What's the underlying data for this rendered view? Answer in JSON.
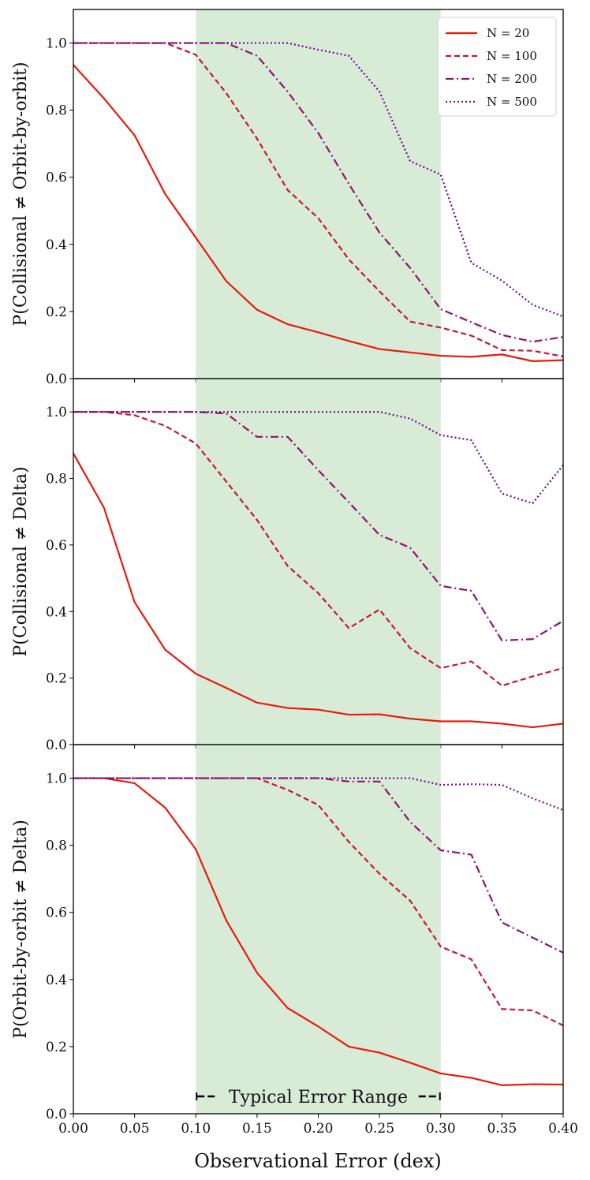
{
  "chart_data": {
    "type": "line",
    "figure_xlabel": "Observational Error (dex)",
    "xlim": [
      0,
      0.4
    ],
    "ylim": [
      0,
      1.1
    ],
    "x_ticks": [
      "0.00",
      "0.05",
      "0.10",
      "0.15",
      "0.20",
      "0.25",
      "0.30",
      "0.35",
      "0.40"
    ],
    "y_ticks": [
      "0.0",
      "0.2",
      "0.4",
      "0.6",
      "0.8",
      "1.0"
    ],
    "shaded_region": {
      "x_start": 0.1,
      "x_end": 0.3,
      "color": "#d8ebd7",
      "label": "Typical Error Range"
    },
    "legend": {
      "location": "upper right of top panel",
      "entries": [
        {
          "key": "n20",
          "label": "N = 20",
          "color": "#e8190f",
          "dash": "solid"
        },
        {
          "key": "n100",
          "label": "N = 100",
          "color": "#c4163a",
          "dash": "dashed"
        },
        {
          "key": "n200",
          "label": "N = 200",
          "color": "#8e1369",
          "dash": "dashdot"
        },
        {
          "key": "n500",
          "label": "N = 500",
          "color": "#6a0d91",
          "dash": "dotted"
        }
      ]
    },
    "x": [
      0,
      0.025,
      0.05,
      0.075,
      0.1,
      0.125,
      0.15,
      0.175,
      0.2,
      0.225,
      0.25,
      0.275,
      0.3,
      0.325,
      0.35,
      0.375,
      0.4
    ],
    "panels": [
      {
        "ylabel": "P(Collisional ≠ Orbit-by-orbit)",
        "series": [
          {
            "name": "N = 20",
            "values": [
              0.935,
              0.835,
              0.725,
              0.55,
              0.42,
              0.29,
              0.205,
              0.162,
              0.138,
              0.112,
              0.088,
              0.078,
              0.068,
              0.065,
              0.072,
              0.052,
              0.055
            ]
          },
          {
            "name": "N = 100",
            "values": [
              1.0,
              1.0,
              1.0,
              1.0,
              0.965,
              0.85,
              0.715,
              0.562,
              0.478,
              0.355,
              0.26,
              0.17,
              0.152,
              0.128,
              0.085,
              0.083,
              0.066
            ]
          },
          {
            "name": "N = 200",
            "values": [
              1.0,
              1.0,
              1.0,
              1.0,
              1.0,
              1.0,
              0.962,
              0.855,
              0.732,
              0.58,
              0.435,
              0.33,
              0.207,
              0.168,
              0.13,
              0.11,
              0.124
            ]
          },
          {
            "name": "N = 500",
            "values": [
              1.0,
              1.0,
              1.0,
              1.0,
              1.0,
              1.0,
              1.0,
              1.0,
              0.98,
              0.962,
              0.855,
              0.648,
              0.608,
              0.345,
              0.292,
              0.22,
              0.185
            ]
          }
        ]
      },
      {
        "ylabel": "P(Collisional ≠ Delta)",
        "series": [
          {
            "name": "N = 20",
            "values": [
              0.875,
              0.712,
              0.428,
              0.285,
              0.213,
              0.17,
              0.126,
              0.11,
              0.105,
              0.09,
              0.091,
              0.078,
              0.07,
              0.07,
              0.063,
              0.052,
              0.063
            ]
          },
          {
            "name": "N = 100",
            "values": [
              1.0,
              1.0,
              0.99,
              0.958,
              0.905,
              0.79,
              0.675,
              0.537,
              0.455,
              0.35,
              0.406,
              0.29,
              0.23,
              0.25,
              0.177,
              0.205,
              0.23
            ]
          },
          {
            "name": "N = 200",
            "values": [
              1.0,
              1.0,
              1.0,
              1.0,
              1.0,
              0.995,
              0.925,
              0.925,
              0.825,
              0.728,
              0.63,
              0.592,
              0.477,
              0.462,
              0.313,
              0.317,
              0.372
            ]
          },
          {
            "name": "N = 500",
            "values": [
              1.0,
              1.0,
              1.0,
              1.0,
              1.0,
              1.0,
              1.0,
              1.0,
              1.0,
              1.0,
              1.0,
              0.98,
              0.93,
              0.915,
              0.755,
              0.725,
              0.84
            ]
          }
        ]
      },
      {
        "ylabel": "P(Orbit-by-orbit ≠ Delta)",
        "series": [
          {
            "name": "N = 20",
            "values": [
              1.0,
              1.0,
              0.985,
              0.912,
              0.788,
              0.575,
              0.42,
              0.315,
              0.26,
              0.2,
              0.182,
              0.152,
              0.12,
              0.107,
              0.085,
              0.088,
              0.087
            ]
          },
          {
            "name": "N = 100",
            "values": [
              1.0,
              1.0,
              1.0,
              1.0,
              1.0,
              1.0,
              1.0,
              0.965,
              0.92,
              0.81,
              0.715,
              0.635,
              0.498,
              0.46,
              0.312,
              0.308,
              0.263
            ]
          },
          {
            "name": "N = 200",
            "values": [
              1.0,
              1.0,
              1.0,
              1.0,
              1.0,
              1.0,
              1.0,
              1.0,
              1.0,
              0.99,
              0.99,
              0.87,
              0.785,
              0.772,
              0.57,
              0.525,
              0.48
            ]
          },
          {
            "name": "N = 500",
            "values": [
              1.0,
              1.0,
              1.0,
              1.0,
              1.0,
              1.0,
              1.0,
              1.0,
              1.0,
              1.0,
              1.0,
              1.0,
              0.98,
              0.982,
              0.98,
              0.94,
              0.905
            ]
          }
        ]
      }
    ]
  }
}
